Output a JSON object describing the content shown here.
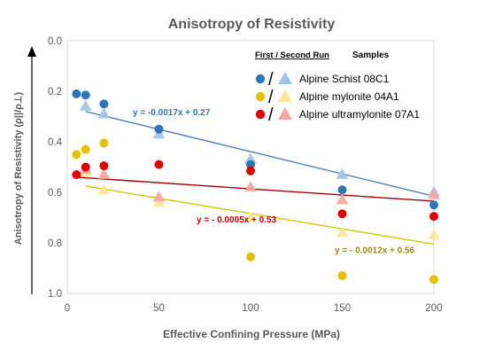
{
  "chart_data": {
    "type": "scatter",
    "title": "Anisotropy of Resistivity",
    "xlabel": "Effective Confining Pressure (MPa)",
    "ylabel": "Anisotropy of Resistivity (ρ||/ρ⊥)",
    "xlim": [
      0,
      200
    ],
    "ylim": [
      0,
      1.0
    ],
    "y_inverted": true,
    "x_ticks": [
      "0",
      "50",
      "100",
      "150",
      "200"
    ],
    "y_ticks": [
      "0.0",
      "0.2",
      "0.4",
      "0.6",
      "0.8",
      "1.0"
    ],
    "legend": {
      "header_runs": "First / Second Run",
      "header_samples": "Samples",
      "separator": "/",
      "placement": "top-right"
    },
    "series": [
      {
        "name": "Alpine Schist 08C1",
        "circle_color": "#2e75b6",
        "triangle_color": "#9dc3e6",
        "line_color": "#4f81bd",
        "label_color": "#2e75b6",
        "first_run": [
          [
            5,
            0.21
          ],
          [
            10,
            0.215
          ],
          [
            20,
            0.25
          ],
          [
            50,
            0.35
          ],
          [
            100,
            0.49
          ],
          [
            150,
            0.59
          ],
          [
            200,
            0.65
          ]
        ],
        "second_run": [
          [
            10,
            0.26
          ],
          [
            20,
            0.29
          ],
          [
            50,
            0.37
          ],
          [
            100,
            0.47
          ],
          [
            150,
            0.53
          ],
          [
            200,
            0.6
          ]
        ],
        "trendline": {
          "slope": -0.0017,
          "intercept": 0.27,
          "x_range": [
            10,
            200
          ],
          "y_range": [
            0.28,
            0.615
          ]
        },
        "trend_label": "y = -0.0017x + 0.27"
      },
      {
        "name": "Alpine mylonite 04A1",
        "circle_color": "#e6c000",
        "triangle_color": "#ffe699",
        "line_color": "#d4c800",
        "label_color": "#a08800",
        "first_run": [
          [
            5,
            0.45
          ],
          [
            10,
            0.43
          ],
          [
            20,
            0.405
          ],
          [
            100,
            0.855
          ],
          [
            150,
            0.93
          ],
          [
            200,
            0.945
          ]
        ],
        "second_run": [
          [
            10,
            0.52
          ],
          [
            20,
            0.59
          ],
          [
            50,
            0.64
          ],
          [
            100,
            0.7
          ],
          [
            150,
            0.76
          ],
          [
            200,
            0.77
          ]
        ],
        "trendline": {
          "slope": -0.0012,
          "intercept": 0.56,
          "x_range": [
            10,
            200
          ],
          "y_range": [
            0.575,
            0.805
          ]
        },
        "trend_label": "y = - 0.0012x + 0.56"
      },
      {
        "name": "Alpine ultramylonite 07A1",
        "circle_color": "#e00000",
        "triangle_color": "#f4a6a0",
        "line_color": "#a00000",
        "label_color": "#c00000",
        "first_run": [
          [
            5,
            0.53
          ],
          [
            10,
            0.5
          ],
          [
            20,
            0.495
          ],
          [
            50,
            0.49
          ],
          [
            100,
            0.515
          ],
          [
            150,
            0.685
          ],
          [
            200,
            0.695
          ]
        ],
        "second_run": [
          [
            10,
            0.51
          ],
          [
            20,
            0.53
          ],
          [
            50,
            0.62
          ],
          [
            100,
            0.58
          ],
          [
            150,
            0.63
          ],
          [
            200,
            0.61
          ]
        ],
        "trendline": {
          "slope": -0.0005,
          "intercept": 0.53,
          "x_range": [
            5,
            200
          ],
          "y_range": [
            0.54,
            0.635
          ]
        },
        "trend_label": "y = - 0.0005x + 0.53"
      }
    ]
  }
}
